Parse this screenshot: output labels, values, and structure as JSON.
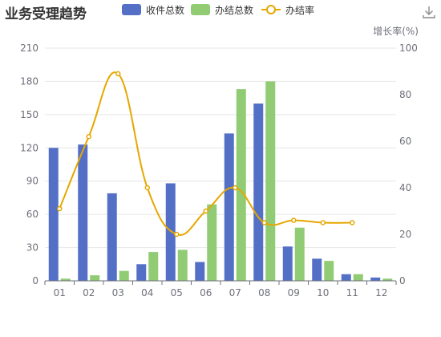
{
  "title": "业务受理趋势",
  "toolbar": {
    "download_icon": "download-icon"
  },
  "colors": {
    "received": "#5470c6",
    "completed": "#91cc75",
    "rate": "#e6a700",
    "grid": "#e6e6e6",
    "axis": "#6e7079"
  },
  "chart_data": {
    "type": "bar",
    "title": "业务受理趋势",
    "categories": [
      "01",
      "02",
      "03",
      "04",
      "05",
      "06",
      "07",
      "08",
      "09",
      "10",
      "11",
      "12"
    ],
    "series": [
      {
        "name": "收件总数",
        "type": "bar",
        "axis": "left",
        "values": [
          120,
          123,
          79,
          15,
          88,
          17,
          133,
          160,
          31,
          20,
          6,
          3
        ]
      },
      {
        "name": "办结总数",
        "type": "bar",
        "axis": "left",
        "values": [
          2,
          5,
          9,
          26,
          28,
          69,
          173,
          180,
          48,
          18,
          6,
          2
        ]
      },
      {
        "name": "办结率",
        "type": "line",
        "axis": "right",
        "values": [
          31,
          62,
          89,
          40,
          20,
          30,
          40,
          25,
          26,
          25,
          25,
          null
        ]
      }
    ],
    "y_left": {
      "min": 0,
      "max": 210,
      "ticks": [
        0,
        30,
        60,
        90,
        120,
        150,
        180,
        210
      ]
    },
    "y_right": {
      "label": "增长率(%)",
      "min": 0,
      "max": 100,
      "ticks": [
        0,
        20,
        40,
        60,
        80,
        100
      ]
    },
    "grid": true,
    "legend": "top"
  }
}
